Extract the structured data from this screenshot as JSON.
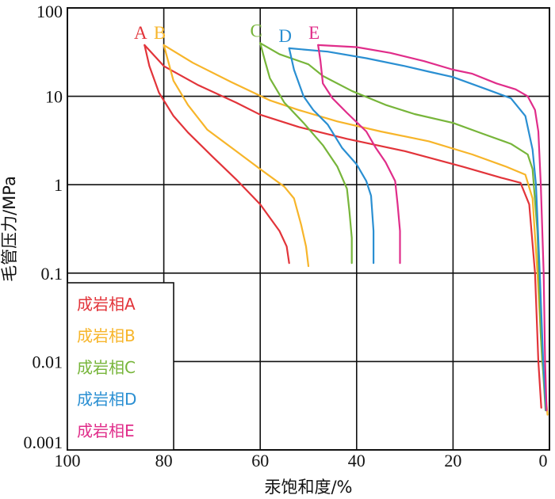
{
  "chart_data": {
    "type": "line",
    "title": "",
    "xlabel": "汞饱和度/%",
    "ylabel": "毛管压力/MPa",
    "x_reversed": true,
    "y_scale": "log",
    "xlim": [
      100,
      0
    ],
    "ylim": [
      0.001,
      100
    ],
    "grid": true,
    "x_ticks": [
      100,
      80,
      60,
      40,
      20,
      0
    ],
    "x_tick_labels": [
      "100",
      "80",
      "60",
      "40",
      "20",
      "0"
    ],
    "y_ticks": [
      100,
      10,
      1,
      0.1,
      0.01,
      0.001
    ],
    "y_tick_labels": [
      "100",
      "10",
      "1",
      "0.1",
      "0.01",
      "0.001"
    ],
    "legend_position": "bottom-left",
    "series": [
      {
        "name": "成岩相A",
        "curve_label": "A",
        "color": "#e2343a",
        "intrusion": [
          [
            84,
            38
          ],
          [
            83,
            22
          ],
          [
            81,
            11
          ],
          [
            78,
            6
          ],
          [
            75,
            3.9
          ],
          [
            70,
            2.1
          ],
          [
            65,
            1.15
          ],
          [
            60,
            0.6
          ],
          [
            56,
            0.3
          ],
          [
            54.5,
            0.2
          ],
          [
            54,
            0.13
          ]
        ],
        "extrusion": [
          [
            84,
            38
          ],
          [
            80,
            22
          ],
          [
            73,
            13.5
          ],
          [
            65,
            8.5
          ],
          [
            60,
            6.2
          ],
          [
            52,
            4.5
          ],
          [
            42,
            3.3
          ],
          [
            30,
            2.4
          ],
          [
            18,
            1.6
          ],
          [
            10,
            1.2
          ],
          [
            6,
            1.05
          ],
          [
            4.2,
            0.6
          ],
          [
            3,
            0.1
          ],
          [
            2.3,
            0.01
          ],
          [
            1.7,
            0.003
          ]
        ]
      },
      {
        "name": "成岩相B",
        "curve_label": "B",
        "color": "#f7b52a",
        "intrusion": [
          [
            80,
            38
          ],
          [
            78,
            15
          ],
          [
            75,
            8
          ],
          [
            71,
            4.2
          ],
          [
            65,
            2.4
          ],
          [
            60,
            1.5
          ],
          [
            55,
            0.95
          ],
          [
            53,
            0.7
          ],
          [
            51.5,
            0.35
          ],
          [
            50.5,
            0.2
          ],
          [
            50,
            0.12
          ]
        ],
        "extrusion": [
          [
            80,
            38
          ],
          [
            74,
            24
          ],
          [
            66,
            14.5
          ],
          [
            58,
            9
          ],
          [
            52,
            7
          ],
          [
            44,
            5.2
          ],
          [
            35,
            4
          ],
          [
            25,
            3.1
          ],
          [
            16,
            2.2
          ],
          [
            9,
            1.6
          ],
          [
            5,
            1.3
          ],
          [
            3.5,
            0.7
          ],
          [
            2.5,
            0.1
          ],
          [
            1.5,
            0.01
          ],
          [
            0.4,
            0.0025
          ]
        ]
      },
      {
        "name成岩相C": "",
        "name": "成岩相C",
        "curve_label": "C",
        "color": "#77b53a",
        "intrusion": [
          [
            60,
            40
          ],
          [
            59,
            25
          ],
          [
            58,
            16
          ],
          [
            55,
            8.5
          ],
          [
            51,
            5
          ],
          [
            47,
            2.8
          ],
          [
            44,
            1.6
          ],
          [
            42,
            0.9
          ],
          [
            41.5,
            0.5
          ],
          [
            41,
            0.25
          ],
          [
            41,
            0.13
          ]
        ],
        "extrusion": [
          [
            60,
            40
          ],
          [
            56,
            30
          ],
          [
            50,
            23
          ],
          [
            47,
            17
          ],
          [
            41,
            11.5
          ],
          [
            34,
            8
          ],
          [
            28,
            6.3
          ],
          [
            20,
            5
          ],
          [
            14,
            3.8
          ],
          [
            8,
            2.9
          ],
          [
            4.5,
            2.2
          ],
          [
            3.5,
            1.5
          ],
          [
            2.5,
            0.3
          ],
          [
            1.8,
            0.02
          ],
          [
            0.8,
            0.0028
          ]
        ]
      },
      {
        "name": "成岩相D",
        "curve_label": "D",
        "color": "#2a8fd2",
        "intrusion": [
          [
            54,
            35
          ],
          [
            53,
            20
          ],
          [
            51,
            10
          ],
          [
            49,
            7
          ],
          [
            46,
            4.8
          ],
          [
            43,
            2.6
          ],
          [
            40,
            1.7
          ],
          [
            38,
            1.1
          ],
          [
            37,
            0.75
          ],
          [
            36.5,
            0.3
          ],
          [
            36.5,
            0.13
          ]
        ],
        "extrusion": [
          [
            54,
            35
          ],
          [
            46,
            32
          ],
          [
            38,
            27
          ],
          [
            30,
            22
          ],
          [
            25,
            19
          ],
          [
            20,
            16.5
          ],
          [
            13,
            12
          ],
          [
            8,
            9.5
          ],
          [
            5,
            6
          ],
          [
            3.5,
            2.5
          ],
          [
            2.8,
            1
          ],
          [
            2,
            0.1
          ],
          [
            1.3,
            0.01
          ],
          [
            0.7,
            0.0028
          ]
        ]
      },
      {
        "name": "成岩相E",
        "curve_label": "E",
        "color": "#e02d8a",
        "intrusion": [
          [
            48,
            38
          ],
          [
            47.5,
            25
          ],
          [
            47,
            14
          ],
          [
            45,
            9.5
          ],
          [
            42,
            6.5
          ],
          [
            38,
            4
          ],
          [
            36,
            2.6
          ],
          [
            34,
            1.8
          ],
          [
            32,
            1.1
          ],
          [
            31.5,
            0.6
          ],
          [
            31,
            0.3
          ],
          [
            31,
            0.13
          ]
        ],
        "extrusion": [
          [
            48,
            38
          ],
          [
            40,
            36
          ],
          [
            33,
            31
          ],
          [
            26,
            25
          ],
          [
            20,
            20
          ],
          [
            16,
            18
          ],
          [
            11,
            14
          ],
          [
            7,
            12
          ],
          [
            4.5,
            10
          ],
          [
            3,
            7
          ],
          [
            2.3,
            4
          ],
          [
            1.8,
            1
          ],
          [
            1.2,
            0.1
          ],
          [
            0.9,
            0.01
          ],
          [
            0.6,
            0.0028
          ]
        ]
      }
    ]
  }
}
